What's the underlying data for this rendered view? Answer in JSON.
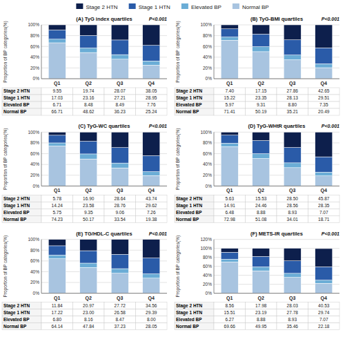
{
  "chart_data": [
    {
      "type": "bar",
      "stacked": true,
      "grid": true,
      "legend": "top",
      "title": "(A) TyG index quartiles",
      "annotation": "P<0.001",
      "ylabel": "Proportion of BP categories(%)",
      "categories": [
        "Q1",
        "Q2",
        "Q3",
        "Q4"
      ],
      "series": [
        {
          "name": "Normal BP",
          "color": "#a8c4e0",
          "values": [
            66.71,
            48.62,
            36.23,
            25.24
          ],
          "value_labels": [
            "66.71",
            "48.62",
            "36.23",
            "25.24"
          ]
        },
        {
          "name": "Elevated BP",
          "color": "#6badd6",
          "values": [
            6.71,
            8.48,
            8.49,
            7.76
          ],
          "value_labels": [
            "6.71",
            "8.48",
            "8.49",
            "7.76"
          ]
        },
        {
          "name": "Stage 1 HTN",
          "color": "#2a5ba8",
          "values": [
            17.03,
            23.16,
            27.21,
            28.95
          ],
          "value_labels": [
            "17.03",
            "23.16",
            "27.21",
            "28.95"
          ]
        },
        {
          "name": "Stage 2 HTN",
          "color": "#0d1f4c",
          "values": [
            9.55,
            19.74,
            28.07,
            38.05
          ],
          "value_labels": [
            "9.55",
            "19.74",
            "28.07",
            "38.05"
          ]
        }
      ],
      "ylim": [
        0,
        100
      ],
      "yticks": [
        {
          "value": 0,
          "label": "0%"
        },
        {
          "value": 20,
          "label": "20%"
        },
        {
          "value": 40,
          "label": "40%"
        },
        {
          "value": 60,
          "label": "60%"
        },
        {
          "value": 80,
          "label": "80%"
        },
        {
          "value": 100,
          "label": "100%"
        }
      ]
    },
    {
      "type": "bar",
      "stacked": true,
      "grid": true,
      "title": "(B) TyG-BMI quartiles",
      "annotation": "P<0.001",
      "ylabel": "Proportion of BP categories(%)",
      "categories": [
        "Q1",
        "Q2",
        "Q3",
        "Q4"
      ],
      "series": [
        {
          "name": "Normal BP",
          "color": "#a8c4e0",
          "values": [
            71.41,
            50.19,
            35.21,
            20.49
          ],
          "value_labels": [
            "71.41",
            "50.19",
            "35.21",
            "20.49"
          ]
        },
        {
          "name": "Elevated BP",
          "color": "#6badd6",
          "values": [
            5.97,
            9.31,
            8.8,
            7.35
          ],
          "value_labels": [
            "5.97",
            "9.31",
            "8.80",
            "7.35"
          ]
        },
        {
          "name": "Stage 1 HTN",
          "color": "#2a5ba8",
          "values": [
            15.22,
            23.35,
            28.13,
            29.51
          ],
          "value_labels": [
            "15.22",
            "23.35",
            "28.13",
            "29.51"
          ]
        },
        {
          "name": "Stage 2 HTN",
          "color": "#0d1f4c",
          "values": [
            7.4,
            17.15,
            27.86,
            42.65
          ],
          "value_labels": [
            "7.40",
            "17.15",
            "27.86",
            "42.65"
          ]
        }
      ],
      "ylim": [
        0,
        100
      ],
      "yticks": [
        {
          "value": 0,
          "label": "0%"
        },
        {
          "value": 20,
          "label": "20%"
        },
        {
          "value": 40,
          "label": "40%"
        },
        {
          "value": 60,
          "label": "60%"
        },
        {
          "value": 80,
          "label": "80%"
        },
        {
          "value": 100,
          "label": "100%"
        }
      ]
    },
    {
      "type": "bar",
      "stacked": true,
      "grid": true,
      "title": "(C) TyG-WC quartiles",
      "annotation": "P<0.001",
      "ylabel": "Proportion of BP categories(%)",
      "categories": [
        "Q1",
        "Q2",
        "Q3",
        "Q4"
      ],
      "series": [
        {
          "name": "Normal BP",
          "color": "#a8c4e0",
          "values": [
            74.23,
            50.17,
            33.54,
            19.38
          ],
          "value_labels": [
            "74.23",
            "50.17",
            "33.54",
            "19.38"
          ]
        },
        {
          "name": "Elevated BP",
          "color": "#6badd6",
          "values": [
            5.75,
            9.35,
            9.06,
            7.26
          ],
          "value_labels": [
            "5.75",
            "9.35",
            "9.06",
            "7.26"
          ]
        },
        {
          "name": "Stage 1 HTN",
          "color": "#2a5ba8",
          "values": [
            14.24,
            23.58,
            28.76,
            29.62
          ],
          "value_labels": [
            "14.24",
            "23.58",
            "28.76",
            "29.62"
          ]
        },
        {
          "name": "Stage 2 HTN",
          "color": "#0d1f4c",
          "values": [
            5.78,
            16.9,
            28.64,
            43.74
          ],
          "value_labels": [
            "5.78",
            "16.90",
            "28.64",
            "43.74"
          ]
        }
      ],
      "ylim": [
        0,
        100
      ],
      "yticks": [
        {
          "value": 0,
          "label": "0%"
        },
        {
          "value": 20,
          "label": "20%"
        },
        {
          "value": 40,
          "label": "40%"
        },
        {
          "value": 60,
          "label": "60%"
        },
        {
          "value": 80,
          "label": "80%"
        },
        {
          "value": 100,
          "label": "100%"
        }
      ]
    },
    {
      "type": "bar",
      "stacked": true,
      "grid": true,
      "title": "(D) TyG-WHtR quartiles",
      "annotation": "P<0.001",
      "ylabel": "Proportion of BP categories(%)",
      "categories": [
        "Q1",
        "Q2",
        "Q3",
        "Q4"
      ],
      "series": [
        {
          "name": "Normal BP",
          "color": "#a8c4e0",
          "values": [
            72.98,
            51.08,
            34.01,
            18.71
          ],
          "value_labels": [
            "72.98",
            "51.08",
            "34.01",
            "18.71"
          ]
        },
        {
          "name": "Elevated BP",
          "color": "#6badd6",
          "values": [
            6.48,
            8.88,
            8.93,
            7.07
          ],
          "value_labels": [
            "6.48",
            "8.88",
            "8.93",
            "7.07"
          ]
        },
        {
          "name": "Stage 1 HTN",
          "color": "#2a5ba8",
          "values": [
            14.91,
            24.46,
            28.56,
            28.35
          ],
          "value_labels": [
            "14.91",
            "24.46",
            "28.56",
            "28.35"
          ]
        },
        {
          "name": "Stage 2 HTN",
          "color": "#0d1f4c",
          "values": [
            5.63,
            15.53,
            28.5,
            45.87
          ],
          "value_labels": [
            "5.63",
            "15.53",
            "28.50",
            "45.87"
          ]
        }
      ],
      "ylim": [
        0,
        100
      ],
      "yticks": [
        {
          "value": 0,
          "label": "0%"
        },
        {
          "value": 20,
          "label": "20%"
        },
        {
          "value": 40,
          "label": "40%"
        },
        {
          "value": 60,
          "label": "60%"
        },
        {
          "value": 80,
          "label": "80%"
        },
        {
          "value": 100,
          "label": "100%"
        }
      ]
    },
    {
      "type": "bar",
      "stacked": true,
      "grid": true,
      "title": "(E) TG/HDL-C quartiles",
      "annotation": "P<0.001",
      "ylabel": "Proportion of BP categories(%)",
      "categories": [
        "Q1",
        "Q2",
        "Q3",
        "Q4"
      ],
      "series": [
        {
          "name": "Normal BP",
          "color": "#a8c4e0",
          "values": [
            64.14,
            47.84,
            37.23,
            28.05
          ],
          "value_labels": [
            "64.14",
            "47.84",
            "37.23",
            "28.05"
          ]
        },
        {
          "name": "Elevated BP",
          "color": "#6badd6",
          "values": [
            6.8,
            8.16,
            8.47,
            8.0
          ],
          "value_labels": [
            "6.80",
            "8.16",
            "8.47",
            "8.00"
          ]
        },
        {
          "name": "Stage 1 HTN",
          "color": "#2a5ba8",
          "values": [
            17.22,
            23.0,
            26.58,
            29.39
          ],
          "value_labels": [
            "17.22",
            "23.00",
            "26.58",
            "29.39"
          ]
        },
        {
          "name": "Stage 2 HTN",
          "color": "#0d1f4c",
          "values": [
            11.84,
            20.97,
            27.72,
            34.56
          ],
          "value_labels": [
            "11.84",
            "20.97",
            "27.72",
            "34.56"
          ]
        }
      ],
      "ylim": [
        0,
        100
      ],
      "yticks": [
        {
          "value": 0,
          "label": "0%"
        },
        {
          "value": 20,
          "label": "20%"
        },
        {
          "value": 40,
          "label": "40%"
        },
        {
          "value": 60,
          "label": "60%"
        },
        {
          "value": 80,
          "label": "80%"
        },
        {
          "value": 100,
          "label": "100%"
        }
      ]
    },
    {
      "type": "bar",
      "stacked": true,
      "grid": true,
      "title": "(F) METS-IR quartiles",
      "annotation": "P<0.001",
      "ylabel": "Proportion of BP categories(%)",
      "categories": [
        "Q1",
        "Q2",
        "Q3",
        "Q4"
      ],
      "series": [
        {
          "name": "Normal BP",
          "color": "#a8c4e0",
          "values": [
            69.66,
            49.95,
            35.46,
            22.18
          ],
          "value_labels": [
            "69.66",
            "49.95",
            "35.46",
            "22.18"
          ]
        },
        {
          "name": "Elevated BP",
          "color": "#6badd6",
          "values": [
            6.27,
            8.88,
            8.93,
            7.07
          ],
          "value_labels": [
            "6.27",
            "8.88",
            "8.93",
            "7.07"
          ]
        },
        {
          "name": "Stage 1 HTN",
          "color": "#2a5ba8",
          "values": [
            15.51,
            23.19,
            27.78,
            29.74
          ],
          "value_labels": [
            "15.51",
            "23.19",
            "27.78",
            "29.74"
          ]
        },
        {
          "name": "Stage 2 HTN",
          "color": "#0d1f4c",
          "values": [
            8.56,
            17.98,
            28.03,
            40.53
          ],
          "value_labels": [
            "8.56",
            "17.98",
            "28.03",
            "40.53"
          ]
        }
      ],
      "ylim": [
        0,
        120
      ],
      "yticks": [
        {
          "value": 0,
          "label": "0%"
        },
        {
          "value": 20,
          "label": "20%"
        },
        {
          "value": 40,
          "label": "40%"
        },
        {
          "value": 60,
          "label": "60%"
        },
        {
          "value": 80,
          "label": "80%"
        },
        {
          "value": 100,
          "label": "100%"
        },
        {
          "value": 120,
          "label": "120%"
        }
      ]
    }
  ]
}
